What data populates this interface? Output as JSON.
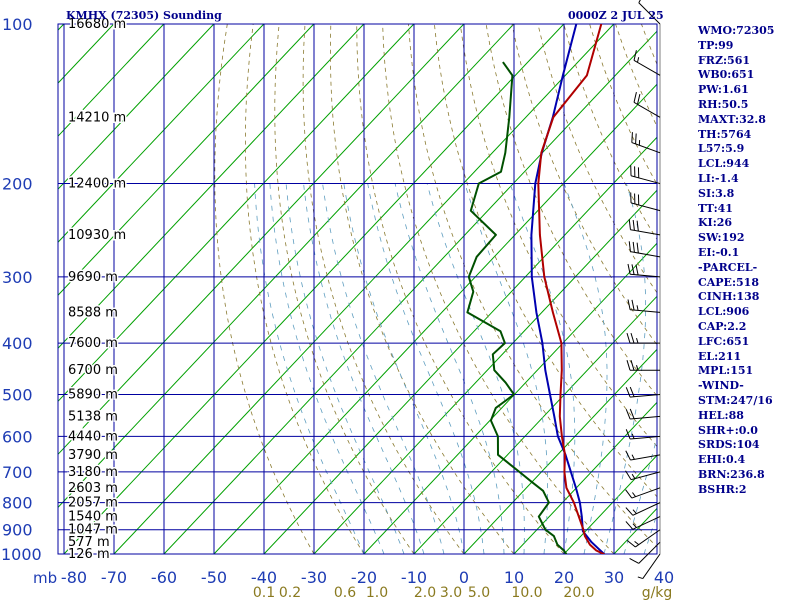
{
  "header": {
    "station": "KMHX (72305) Sounding",
    "time": "0000Z  2 JUL 25"
  },
  "stats": [
    "WMO:72305",
    "TP:99",
    "FRZ:561",
    "WB0:651",
    "PW:1.61",
    "RH:50.5",
    "MAXT:32.8",
    "TH:5764",
    "L57:5.9",
    "LCL:944",
    "LI:-1.4",
    "SI:3.8",
    "TT:41",
    "KI:26",
    "SW:192",
    "EI:-0.1",
    "-PARCEL-",
    "CAPE:518",
    "CINH:138",
    "LCL:906",
    "CAP:2.2",
    "LFC:651",
    "EL:211",
    "MPL:151",
    "-WIND-",
    "STM:247/16",
    "HEL:88",
    "SHR+:0.0",
    "SRDS:104",
    "EHI:0.4",
    "BRN:236.8",
    "BSHR:2"
  ],
  "colors": {
    "background": "#ffffff",
    "grid": "#0000a0",
    "pressure_labels": "#1e3cb4",
    "temperature_labels": "#1e3cb4",
    "mixing_ratio_labels": "#8a7a20",
    "height_labels": "#000000",
    "isotherms": "#00a000",
    "dry_adiabats": "#8a7a30",
    "moist_adiabats": "#5f9ec0",
    "temperature_trace": "#b00000",
    "dewpoint_trace": "#005000",
    "parcel_trace": "#0000b0",
    "wind_barbs": "#000000",
    "stats_text": "#00008b"
  },
  "chart_data": {
    "type": "skew-t",
    "title": "KMHX (72305) Sounding",
    "time_label": "0000Z  2 JUL 25",
    "y_axis_label": "mb",
    "y_scale": "log",
    "pressure_range_mb": [
      1000,
      100
    ],
    "pressure_ticks": [
      {
        "p": 100,
        "label": "100"
      },
      {
        "p": 200,
        "label": "200"
      },
      {
        "p": 300,
        "label": "300"
      },
      {
        "p": 400,
        "label": "400"
      },
      {
        "p": 500,
        "label": "500"
      },
      {
        "p": 600,
        "label": "600"
      },
      {
        "p": 700,
        "label": "700"
      },
      {
        "p": 800,
        "label": "800"
      },
      {
        "p": 900,
        "label": "900"
      },
      {
        "p": 1000,
        "label": "1000"
      }
    ],
    "temperature_ticks_c": [
      {
        "t": -80,
        "label": "-80"
      },
      {
        "t": -70,
        "label": "-70"
      },
      {
        "t": -60,
        "label": "-60"
      },
      {
        "t": -50,
        "label": "-50"
      },
      {
        "t": -40,
        "label": "-40"
      },
      {
        "t": -30,
        "label": "-30"
      },
      {
        "t": -20,
        "label": "-20"
      },
      {
        "t": -10,
        "label": "-10"
      },
      {
        "t": 0,
        "label": "0"
      },
      {
        "t": 10,
        "label": "10"
      },
      {
        "t": 20,
        "label": "20"
      },
      {
        "t": 30,
        "label": "30"
      },
      {
        "t": 40,
        "label": "40"
      }
    ],
    "mixing_ratio_labels_gkg": [
      "0.1",
      "0.2",
      "0.6",
      "1.0",
      "2.0",
      "3.0",
      "5.0",
      "10.0",
      "20.0"
    ],
    "mixing_ratio_unit": "g/kg",
    "height_labels": [
      {
        "p": 100,
        "label": "16680 m"
      },
      {
        "p": 150,
        "label": "14210 m"
      },
      {
        "p": 200,
        "label": "12400 m"
      },
      {
        "p": 250,
        "label": "10930 m"
      },
      {
        "p": 300,
        "label": "9690 m"
      },
      {
        "p": 350,
        "label": "8588 m"
      },
      {
        "p": 400,
        "label": "7600 m"
      },
      {
        "p": 450,
        "label": "6700 m"
      },
      {
        "p": 500,
        "label": "5890 m"
      },
      {
        "p": 550,
        "label": "5138 m"
      },
      {
        "p": 600,
        "label": "4440 m"
      },
      {
        "p": 650,
        "label": "3790 m"
      },
      {
        "p": 700,
        "label": "3180 m"
      },
      {
        "p": 750,
        "label": "2603 m"
      },
      {
        "p": 800,
        "label": "2057 m"
      },
      {
        "p": 850,
        "label": "1540 m"
      },
      {
        "p": 900,
        "label": "1047 m"
      },
      {
        "p": 950,
        "label": "577 m"
      },
      {
        "p": 1000,
        "label": "126 m"
      }
    ],
    "temperature": [
      [
        1002,
        28.2
      ],
      [
        985,
        25.8
      ],
      [
        960,
        23.4
      ],
      [
        925,
        20.8
      ],
      [
        900,
        19.3
      ],
      [
        850,
        15.9
      ],
      [
        800,
        12.3
      ],
      [
        750,
        8.0
      ],
      [
        700,
        4.6
      ],
      [
        650,
        1.5
      ],
      [
        600,
        -2.6
      ],
      [
        550,
        -6.8
      ],
      [
        500,
        -10.8
      ],
      [
        450,
        -15.1
      ],
      [
        400,
        -20.3
      ],
      [
        350,
        -27.8
      ],
      [
        300,
        -36.2
      ],
      [
        250,
        -45.0
      ],
      [
        200,
        -55.0
      ],
      [
        175,
        -60.2
      ],
      [
        150,
        -64.5
      ],
      [
        125,
        -65.7
      ],
      [
        100,
        -72.5
      ]
    ],
    "dewpoint": [
      [
        1002,
        20.6
      ],
      [
        985,
        19.3
      ],
      [
        960,
        16.9
      ],
      [
        925,
        14.6
      ],
      [
        900,
        11.7
      ],
      [
        850,
        7.9
      ],
      [
        800,
        7.3
      ],
      [
        760,
        3.9
      ],
      [
        730,
        -0.2
      ],
      [
        700,
        -4.4
      ],
      [
        650,
        -11.9
      ],
      [
        600,
        -15.4
      ],
      [
        560,
        -19.8
      ],
      [
        530,
        -21.2
      ],
      [
        500,
        -20.1
      ],
      [
        475,
        -24.0
      ],
      [
        450,
        -28.6
      ],
      [
        420,
        -31.9
      ],
      [
        400,
        -31.6
      ],
      [
        380,
        -34.7
      ],
      [
        350,
        -44.9
      ],
      [
        320,
        -47.6
      ],
      [
        300,
        -51.3
      ],
      [
        275,
        -53.5
      ],
      [
        250,
        -53.8
      ],
      [
        225,
        -63.4
      ],
      [
        200,
        -66.9
      ],
      [
        190,
        -64.7
      ],
      [
        175,
        -67.4
      ],
      [
        150,
        -73.3
      ],
      [
        125,
        -80.6
      ],
      [
        118,
        -85.0
      ]
    ],
    "parcel": [
      [
        1002,
        28.2
      ],
      [
        950,
        23.3
      ],
      [
        906,
        19.5
      ],
      [
        850,
        16.5
      ],
      [
        800,
        13.5
      ],
      [
        750,
        9.9
      ],
      [
        700,
        5.9
      ],
      [
        650,
        1.6
      ],
      [
        600,
        -3.4
      ],
      [
        550,
        -7.9
      ],
      [
        500,
        -12.9
      ],
      [
        450,
        -18.4
      ],
      [
        400,
        -24.1
      ],
      [
        350,
        -31.1
      ],
      [
        300,
        -38.7
      ],
      [
        250,
        -46.7
      ],
      [
        200,
        -55.6
      ],
      [
        175,
        -60.1
      ],
      [
        150,
        -64.6
      ],
      [
        125,
        -70.5
      ],
      [
        100,
        -77.5
      ]
    ],
    "wind_profile": [
      [
        1000,
        215,
        5
      ],
      [
        950,
        225,
        10
      ],
      [
        900,
        235,
        15
      ],
      [
        850,
        245,
        15
      ],
      [
        800,
        245,
        15
      ],
      [
        750,
        250,
        15
      ],
      [
        700,
        255,
        15
      ],
      [
        650,
        260,
        15
      ],
      [
        600,
        265,
        15
      ],
      [
        550,
        265,
        20
      ],
      [
        500,
        265,
        20
      ],
      [
        450,
        270,
        25
      ],
      [
        400,
        270,
        25
      ],
      [
        350,
        275,
        25
      ],
      [
        300,
        275,
        30
      ],
      [
        275,
        280,
        30
      ],
      [
        250,
        280,
        30
      ],
      [
        225,
        285,
        30
      ],
      [
        200,
        285,
        30
      ],
      [
        175,
        290,
        25
      ],
      [
        150,
        300,
        20
      ],
      [
        125,
        300,
        15
      ],
      [
        100,
        315,
        10
      ]
    ]
  }
}
